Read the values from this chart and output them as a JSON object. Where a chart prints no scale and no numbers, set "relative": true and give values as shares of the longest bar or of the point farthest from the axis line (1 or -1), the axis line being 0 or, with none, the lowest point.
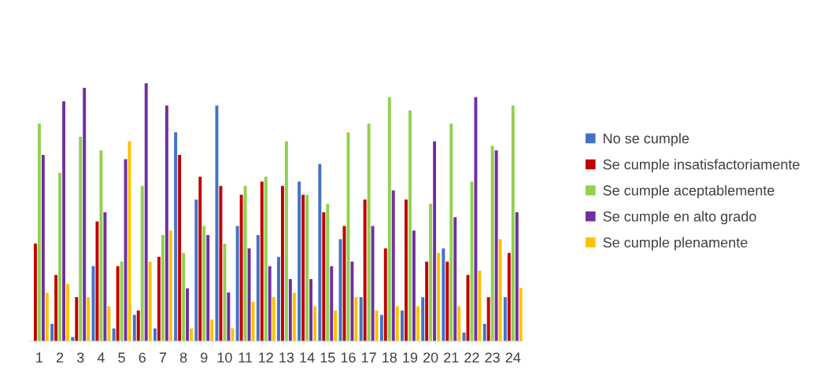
{
  "chart_data": {
    "type": "bar",
    "relative": true,
    "legend": "right",
    "grid": false,
    "categories": [
      "1",
      "2",
      "3",
      "4",
      "5",
      "6",
      "7",
      "8",
      "9",
      "10",
      "11",
      "12",
      "13",
      "14",
      "15",
      "16",
      "17",
      "18",
      "19",
      "20",
      "21",
      "22",
      "23",
      "24"
    ],
    "series": [
      {
        "name": "No se cumple",
        "color": "#4472c4",
        "values": [
          0,
          0.067,
          0.016,
          0.291,
          0.05,
          0.102,
          0.05,
          0.81,
          0.55,
          0.914,
          0.447,
          0.412,
          0.327,
          0.619,
          0.688,
          0.396,
          0.171,
          0.102,
          0.119,
          0.171,
          0.36,
          0.034,
          0.067,
          0.171
        ]
      },
      {
        "name": "Se cumple insatisfactoriamente",
        "color": "#c00000",
        "values": [
          0.379,
          0.257,
          0.171,
          0.464,
          0.291,
          0.119,
          0.327,
          0.723,
          0.638,
          0.602,
          0.568,
          0.619,
          0.602,
          0.568,
          0.5,
          0.447,
          0.55,
          0.36,
          0.55,
          0.309,
          0.309,
          0.257,
          0.171,
          0.342
        ]
      },
      {
        "name": "Se cumple aceptablemente",
        "color": "#92d050",
        "values": [
          0.844,
          0.653,
          0.793,
          0.74,
          0.309,
          0.602,
          0.412,
          0.342,
          0.447,
          0.378,
          0.602,
          0.638,
          0.775,
          0.568,
          0.533,
          0.81,
          0.844,
          0.947,
          0.895,
          0.533,
          0.844,
          0.619,
          0.758,
          0.914
        ]
      },
      {
        "name": "Se cumple en alto grado",
        "color": "#7030a0",
        "values": [
          0.723,
          0.931,
          0.983,
          0.5,
          0.706,
          1,
          0.914,
          0.205,
          0.412,
          0.189,
          0.36,
          0.291,
          0.241,
          0.241,
          0.291,
          0.309,
          0.447,
          0.585,
          0.429,
          0.775,
          0.481,
          0.947,
          0.74,
          0.5
        ]
      },
      {
        "name": "Se cumple plenamente",
        "color": "#ffc000",
        "values": [
          0.188,
          0.222,
          0.171,
          0.136,
          0.775,
          0.309,
          0.429,
          0.05,
          0.084,
          0.05,
          0.153,
          0.171,
          0.188,
          0.136,
          0.119,
          0.171,
          0.119,
          0.136,
          0.136,
          0.342,
          0.136,
          0.274,
          0.396,
          0.207
        ]
      }
    ]
  }
}
